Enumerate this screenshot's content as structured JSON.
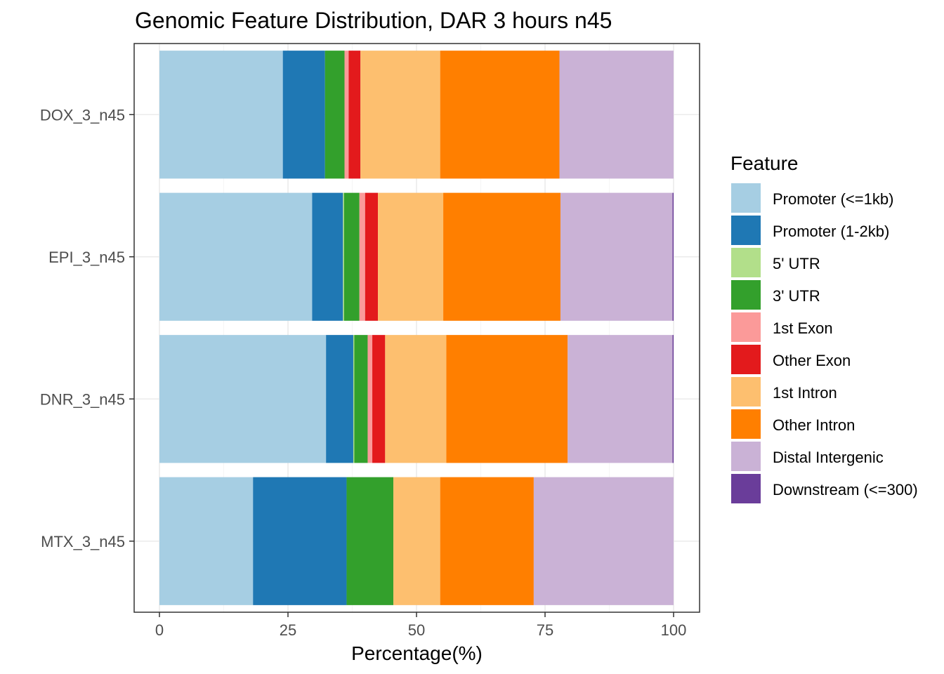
{
  "chart_data": {
    "type": "bar",
    "orientation": "horizontal",
    "stacked": true,
    "title": "Genomic Feature Distribution, DAR 3 hours n45",
    "xlabel": "Percentage(%)",
    "ylabel": "",
    "xlim": [
      0,
      100
    ],
    "x_ticks": [
      "0",
      "25",
      "50",
      "75",
      "100"
    ],
    "grid": true,
    "legend_position": "right",
    "legend_title": "Feature",
    "categories": [
      "DOX_3_n45",
      "EPI_3_n45",
      "DNR_3_n45",
      "MTX_3_n45"
    ],
    "series": [
      {
        "name": "Promoter (<=1kb)",
        "color": "#A6CEE3",
        "values": [
          24.0,
          29.7,
          32.4,
          18.2
        ]
      },
      {
        "name": "Promoter (1-2kb)",
        "color": "#1F78B4",
        "values": [
          8.2,
          6.0,
          5.3,
          18.2
        ]
      },
      {
        "name": "5' UTR",
        "color": "#B2DF8A",
        "values": [
          0.0,
          0.2,
          0.2,
          0.0
        ]
      },
      {
        "name": "3' UTR",
        "color": "#33A02C",
        "values": [
          3.8,
          3.0,
          2.6,
          9.1
        ]
      },
      {
        "name": "1st Exon",
        "color": "#FB9A99",
        "values": [
          0.8,
          1.1,
          0.9,
          0.0
        ]
      },
      {
        "name": "Other Exon",
        "color": "#E31A1C",
        "values": [
          2.3,
          2.5,
          2.5,
          0.0
        ]
      },
      {
        "name": "1st Intron",
        "color": "#FDBF6F",
        "values": [
          15.5,
          12.7,
          11.9,
          9.1
        ]
      },
      {
        "name": "Other Intron",
        "color": "#FF7F00",
        "values": [
          23.2,
          22.8,
          23.6,
          18.2
        ]
      },
      {
        "name": "Distal Intergenic",
        "color": "#CAB2D6",
        "values": [
          22.2,
          21.8,
          20.4,
          27.2
        ]
      },
      {
        "name": "Downstream (<=300)",
        "color": "#6A3D9A",
        "values": [
          0.0,
          0.2,
          0.2,
          0.0
        ]
      }
    ]
  }
}
